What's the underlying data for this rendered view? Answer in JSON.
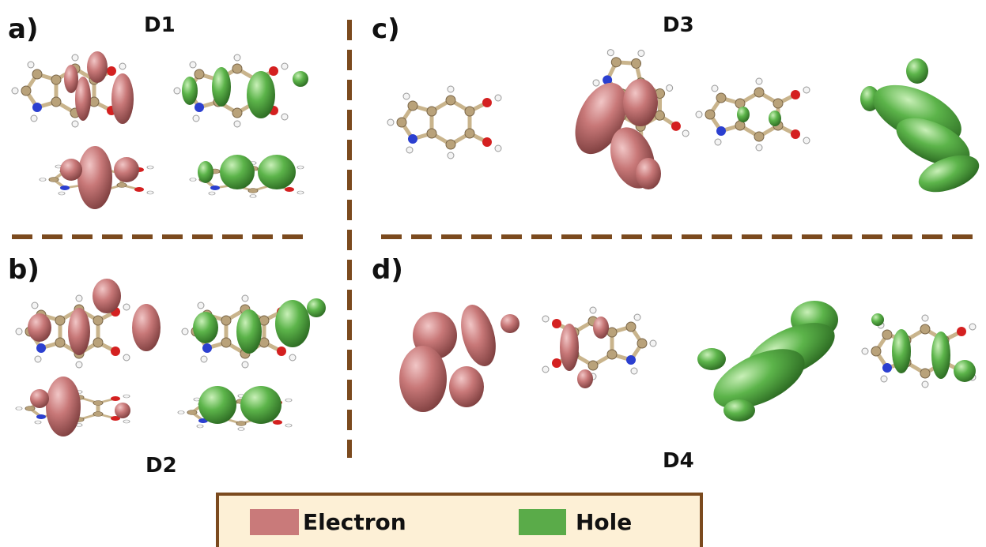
{
  "panels": [
    {
      "letter": "a)",
      "label": "D1"
    },
    {
      "letter": "b)",
      "label": "D2"
    },
    {
      "letter": "c)",
      "label": "D3"
    },
    {
      "letter": "d)",
      "label": "D4"
    }
  ],
  "legend": {
    "items": [
      {
        "label": "Electron"
      },
      {
        "label": "Hole"
      }
    ]
  }
}
